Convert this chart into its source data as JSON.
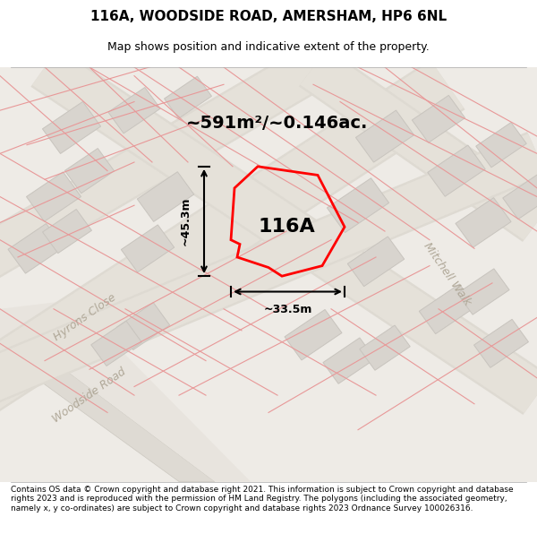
{
  "title": "116A, WOODSIDE ROAD, AMERSHAM, HP6 6NL",
  "subtitle": "Map shows position and indicative extent of the property.",
  "area_text": "~591m²/~0.146ac.",
  "label": "116A",
  "dim_width": "~33.5m",
  "dim_height": "~45.3m",
  "footer": "Contains OS data © Crown copyright and database right 2021. This information is subject to Crown copyright and database rights 2023 and is reproduced with the permission of HM Land Registry. The polygons (including the associated geometry, namely x, y co-ordinates) are subject to Crown copyright and database rights 2023 Ordnance Survey 100026316.",
  "bg_color": "#f5f4f2",
  "map_bg": "#f0eeeb",
  "road_fill": "#e8e4de",
  "road_stroke": "#d0c8be",
  "plot_color": "red",
  "building_fill": "#d8d4ce",
  "street_label_color": "#b0a898",
  "pink_road_color": "#e8a0a0"
}
